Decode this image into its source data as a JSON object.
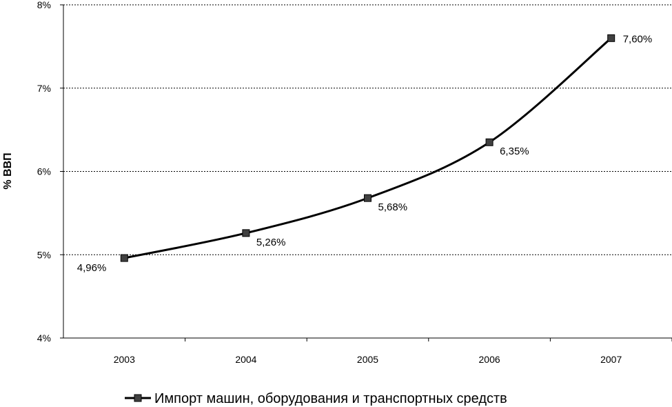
{
  "chart_data": {
    "type": "line",
    "categories": [
      "2003",
      "2004",
      "2005",
      "2006",
      "2007"
    ],
    "series": [
      {
        "name": "Импорт машин, оборудования и транспортных средств",
        "values": [
          4.96,
          5.26,
          5.68,
          6.35,
          7.6
        ],
        "data_labels": [
          "4,96%",
          "5,26%",
          "5,68%",
          "6,35%",
          "7,60%"
        ],
        "color": "#000000",
        "marker_color": "#404040",
        "marker": "square",
        "smooth": true
      }
    ],
    "ylabel": "% ВВП",
    "ylim": [
      4,
      8
    ],
    "y_ticks": [
      4,
      5,
      6,
      7,
      8
    ],
    "y_tick_labels": [
      "4%",
      "5%",
      "6%",
      "7%",
      "8%"
    ],
    "grid": {
      "horizontal": true,
      "style": "dotted"
    },
    "legend_position": "bottom"
  }
}
